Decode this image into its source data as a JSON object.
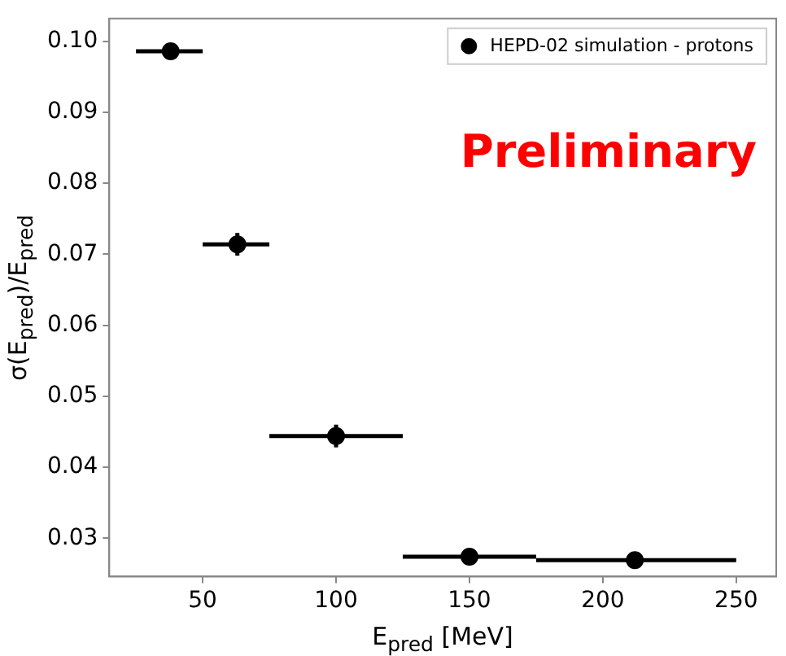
{
  "chart_data": {
    "type": "scatter",
    "xlabel": "E$_{pred}$ [MeV]",
    "ylabel": "σ(E$_{pred}$)/E$_{pred}$",
    "annotations": [
      "Preliminary"
    ],
    "series": [
      {
        "name": "HEPD-02 simulation - protons",
        "color": "#000000",
        "x": [
          38,
          63,
          100,
          150,
          212
        ],
        "values": [
          0.0986,
          0.0714,
          0.0444,
          0.0274,
          0.0269
        ],
        "xerrors": [
          [
            25,
            50
          ],
          [
            50,
            75
          ],
          [
            75,
            125
          ],
          [
            125,
            175
          ],
          [
            175,
            250
          ]
        ],
        "errors": [
          null,
          0.0016,
          0.0016,
          null,
          null
        ]
      }
    ],
    "xlim": [
      15,
      265
    ],
    "xticks": [
      50,
      100,
      150,
      200,
      250
    ],
    "ylim": [
      0.0246,
      0.1032
    ],
    "yticks": [
      0.03,
      0.04,
      0.05,
      0.06,
      0.07,
      0.08,
      0.09,
      {
        "value": 0.1,
        "label": "0.10"
      }
    ],
    "grid": false,
    "legend": "top right",
    "marker": "circle"
  }
}
